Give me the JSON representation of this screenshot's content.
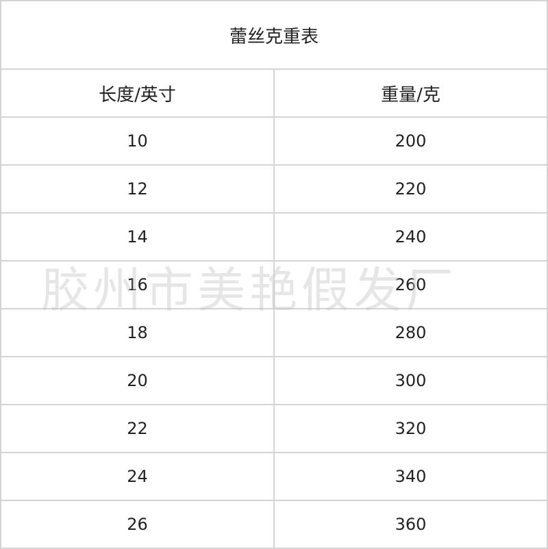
{
  "table": {
    "title": "蕾丝克重表",
    "headers": [
      "长度/英寸",
      "重量/克"
    ],
    "rows": [
      [
        "10",
        "200"
      ],
      [
        "12",
        "220"
      ],
      [
        "14",
        "240"
      ],
      [
        "16",
        "260"
      ],
      [
        "18",
        "280"
      ],
      [
        "20",
        "300"
      ],
      [
        "22",
        "320"
      ],
      [
        "24",
        "340"
      ],
      [
        "26",
        "360"
      ]
    ]
  },
  "watermark": "胶州市美艳假发厂"
}
